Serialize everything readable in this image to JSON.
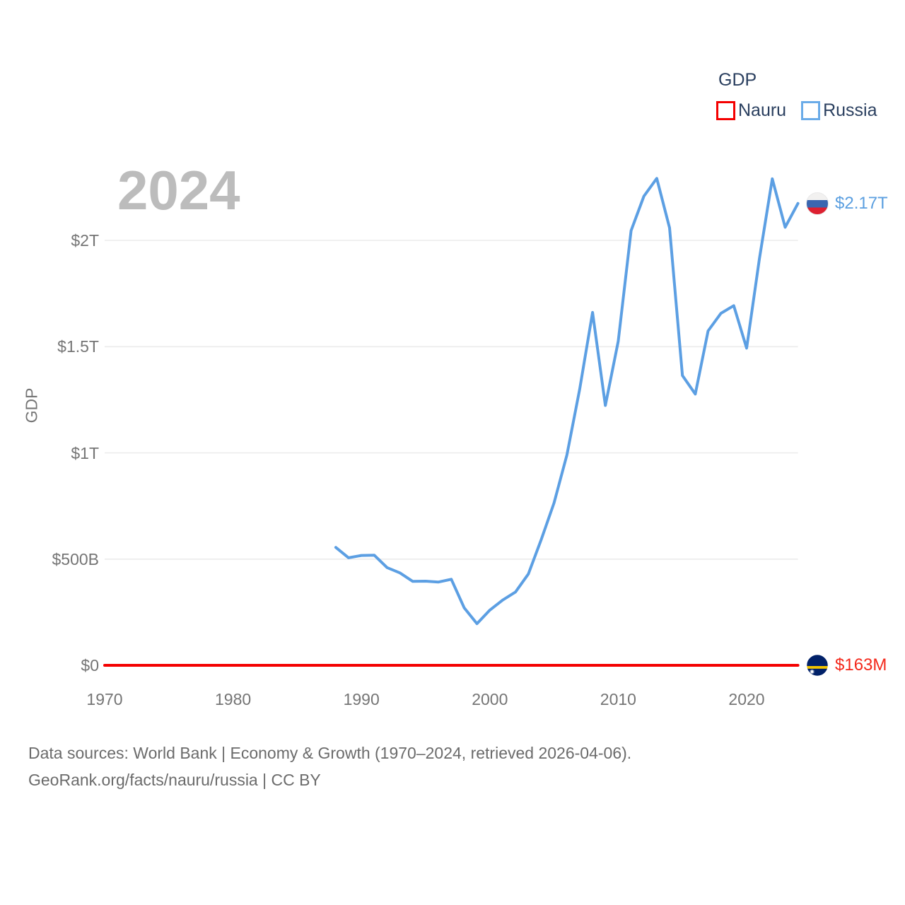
{
  "watermark": "2024",
  "legend": {
    "title": "GDP",
    "items": [
      {
        "label": "Nauru",
        "color": "#f40000"
      },
      {
        "label": "Russia",
        "color": "#6aabe8"
      }
    ]
  },
  "y_axis": {
    "title": "GDP",
    "ticks": [
      {
        "label": "$0",
        "value": 0
      },
      {
        "label": "$500B",
        "value": 500
      },
      {
        "label": "$1T",
        "value": 1000
      },
      {
        "label": "$1.5T",
        "value": 1500
      },
      {
        "label": "$2T",
        "value": 2000
      }
    ]
  },
  "x_axis": {
    "ticks": [
      {
        "label": "1970",
        "value": 1970
      },
      {
        "label": "1980",
        "value": 1980
      },
      {
        "label": "1990",
        "value": 1990
      },
      {
        "label": "2000",
        "value": 2000
      },
      {
        "label": "2010",
        "value": 2010
      },
      {
        "label": "2020",
        "value": 2020
      }
    ]
  },
  "end_labels": [
    {
      "series": "Russia",
      "label": "$2.17T",
      "color": "#5b9fe0",
      "flag": "russia-flag"
    },
    {
      "series": "Nauru",
      "label": "$163M",
      "color": "#f4281b",
      "flag": "nauru-flag"
    }
  ],
  "footer": {
    "line1": "Data sources: World Bank | Economy & Growth (1970–2024, retrieved 2026-04-06).",
    "line2": "GeoRank.org/facts/nauru/russia | CC BY"
  },
  "chart_data": {
    "type": "line",
    "title": "GDP",
    "xlabel": "",
    "ylabel": "GDP",
    "x_range": [
      1970,
      2024
    ],
    "y_range_billion_usd": [
      0,
      2400
    ],
    "grid": true,
    "legend_position": "top-right",
    "watermark_year": "2024",
    "series": [
      {
        "name": "Nauru",
        "color": "#f40000",
        "end_label": "$163M",
        "x": [
          1970,
          2024
        ],
        "values_billion_usd": [
          0.0,
          0.163
        ]
      },
      {
        "name": "Russia",
        "color": "#5c9fe3",
        "end_label": "$2.17T",
        "x": [
          1988,
          1989,
          1990,
          1991,
          1992,
          1993,
          1994,
          1995,
          1996,
          1997,
          1998,
          1999,
          2000,
          2001,
          2002,
          2003,
          2004,
          2005,
          2006,
          2007,
          2008,
          2009,
          2010,
          2011,
          2012,
          2013,
          2014,
          2015,
          2016,
          2017,
          2018,
          2019,
          2020,
          2021,
          2022,
          2023,
          2024
        ],
        "values_billion_usd": [
          555,
          506,
          517,
          518,
          460,
          435,
          395,
          396,
          392,
          405,
          271,
          196,
          260,
          307,
          345,
          430,
          591,
          764,
          990,
          1300,
          1661,
          1223,
          1525,
          2046,
          2208,
          2292,
          2059,
          1364,
          1277,
          1574,
          1657,
          1693,
          1493,
          1916,
          2290,
          2062,
          2174
        ]
      }
    ]
  }
}
